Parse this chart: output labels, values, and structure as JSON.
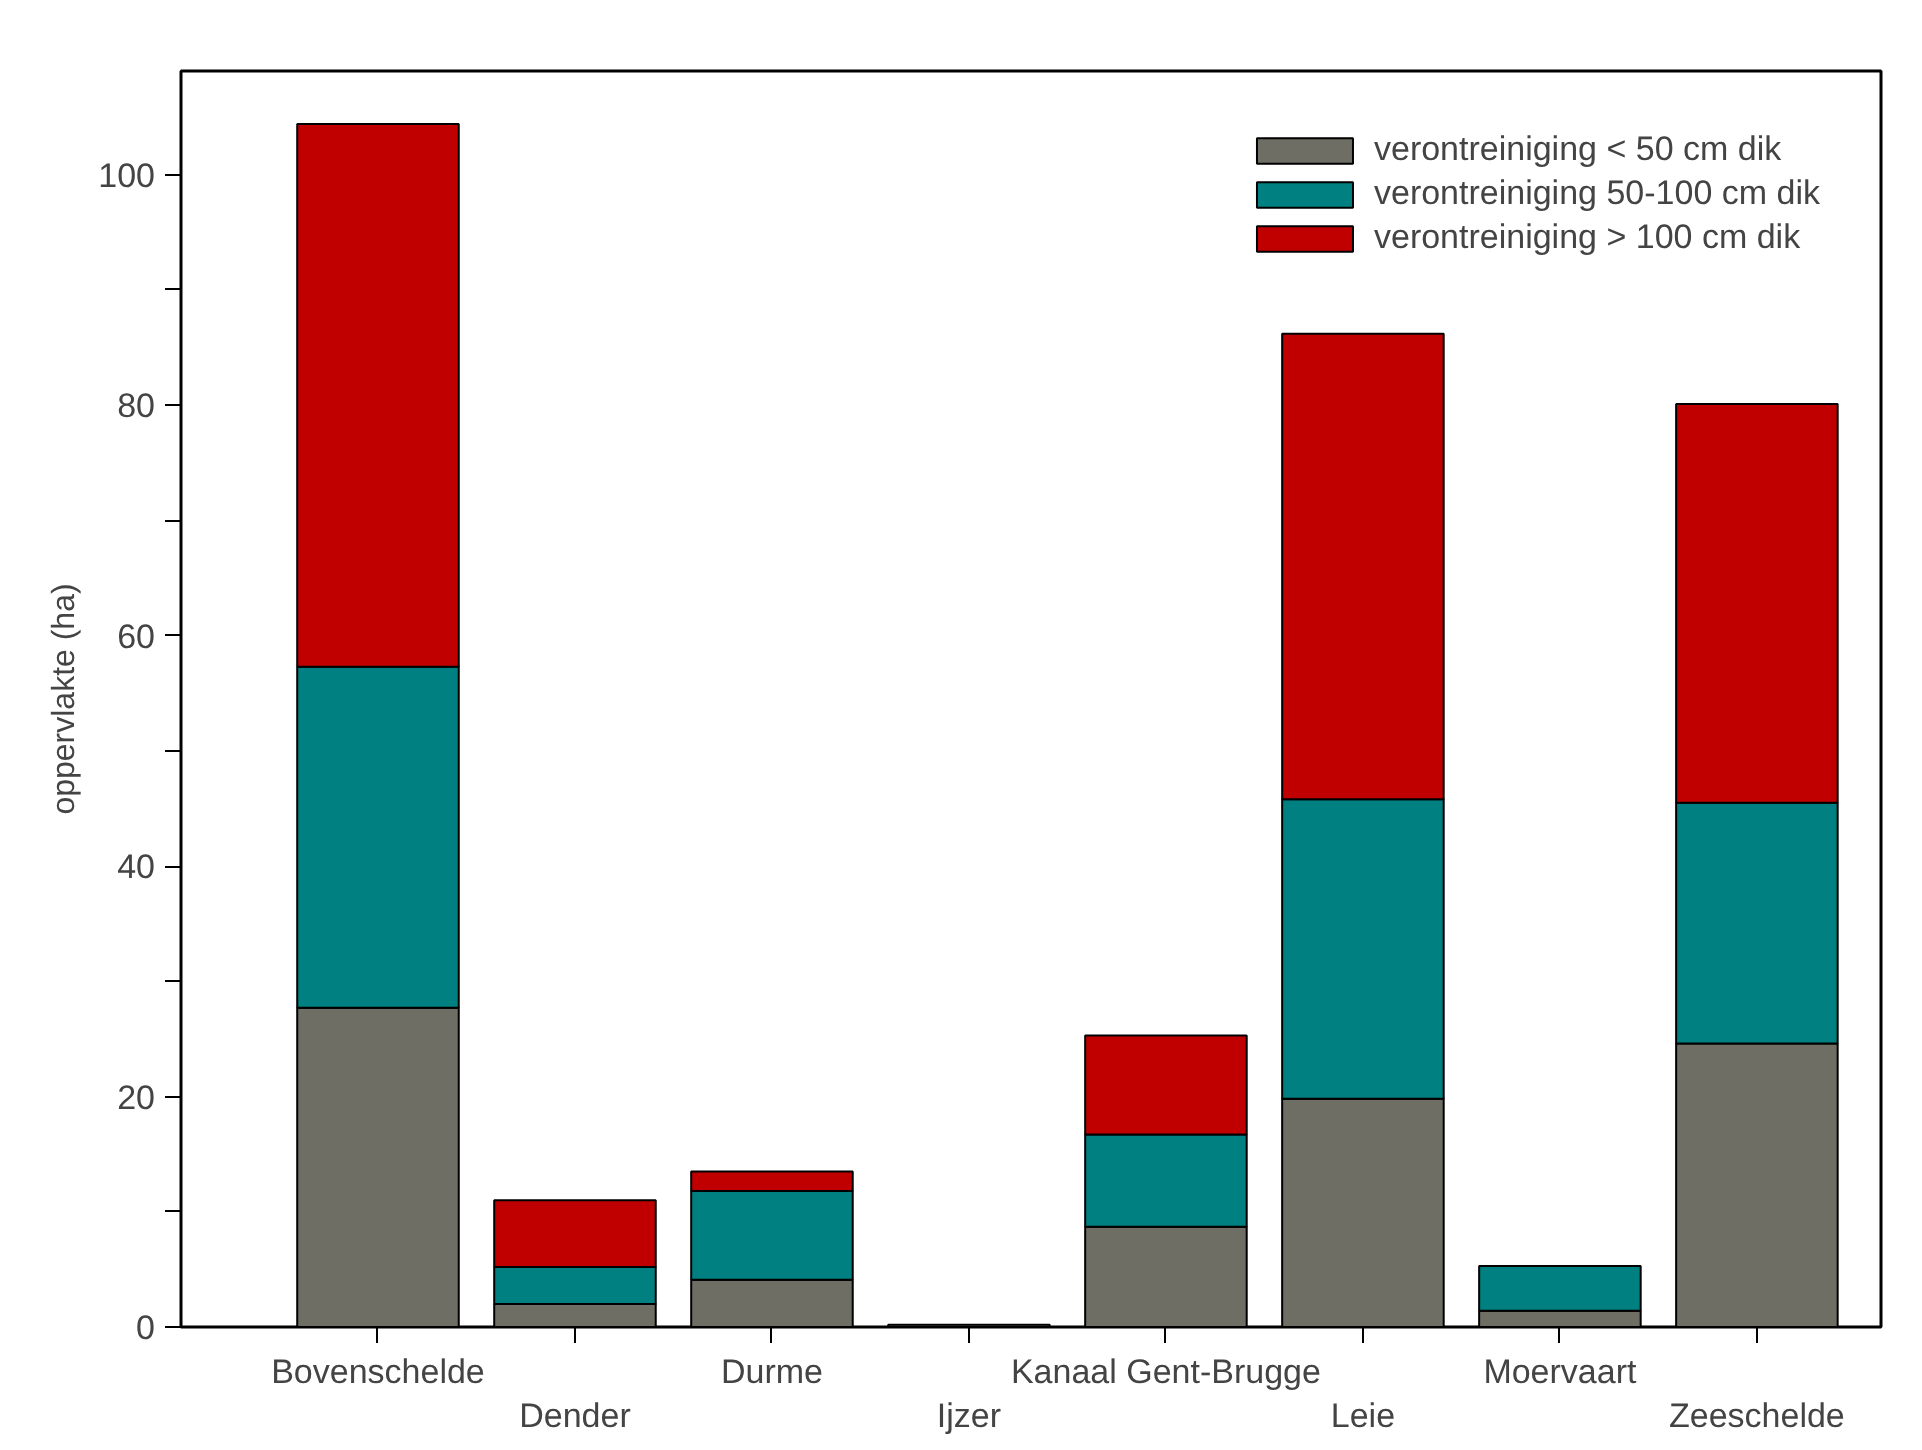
{
  "chart_data": {
    "type": "bar",
    "stacked": true,
    "ylabel": "oppervlakte (ha)",
    "categories": [
      "Bovenschelde",
      "Dender",
      "Durme",
      "Ijzer",
      "Kanaal Gent-Brugge",
      "Leie",
      "Moervaart",
      "Zeeschelde"
    ],
    "series": [
      {
        "name": "verontreiniging < 50 cm dik",
        "color": "#6e6e64",
        "values": [
          27.7,
          2.0,
          4.1,
          0.2,
          8.7,
          19.8,
          1.4,
          24.6
        ]
      },
      {
        "name": "verontreiniging 50-100 cm dik",
        "color": "#008080",
        "values": [
          29.6,
          3.2,
          7.7,
          0,
          8.0,
          26.0,
          3.9,
          20.9
        ]
      },
      {
        "name": "verontreiniging > 100 cm dik",
        "color": "#c00000",
        "values": [
          47.1,
          5.8,
          1.7,
          0,
          8.6,
          40.4,
          0,
          34.6
        ]
      }
    ],
    "ylim": [
      0,
      109
    ],
    "yticks": [
      0,
      {
        "value": 10,
        "label": null
      },
      20,
      {
        "value": 30,
        "label": null
      },
      40,
      {
        "value": 50,
        "label": null
      },
      60,
      {
        "value": 70,
        "label": null
      },
      80,
      {
        "value": 90,
        "label": null
      },
      100
    ],
    "legend": "top right",
    "grid": false
  }
}
